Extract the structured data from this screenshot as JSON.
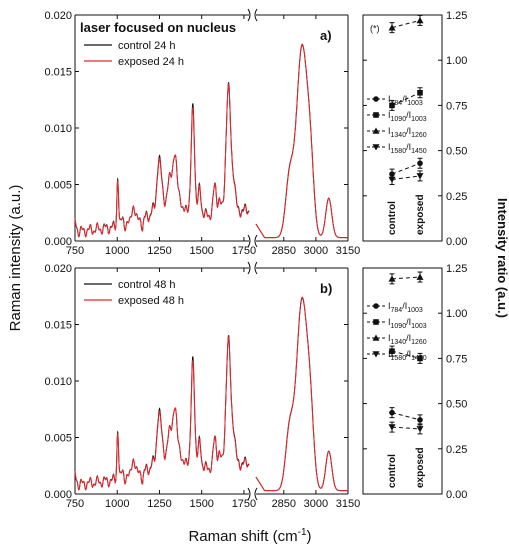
{
  "colors": {
    "control": "#111111",
    "exposed": "#e8262b"
  },
  "common": {
    "xlabel": "Raman shift (cm",
    "xlabel_sup": "-1",
    "xlabel_end": ")",
    "ylabel": "Raman intensity (a.u.)",
    "ylabel_right": "Intensity ratio (a.u.)"
  },
  "chart_data": [
    {
      "type": "line",
      "panel": "a)",
      "title": "laser focused on nucleus",
      "xlim_left": [
        750,
        1780
      ],
      "xlim_right": [
        2720,
        3150
      ],
      "axis_break": true,
      "x_ticks_left": [
        "750",
        "1000",
        "1250",
        "1500",
        "1750"
      ],
      "x_ticks_right": [
        "2850",
        "3000",
        "3150"
      ],
      "ylim": [
        0,
        0.02
      ],
      "y_ticks": [
        "0.000",
        "0.005",
        "0.010",
        "0.015",
        "0.020"
      ],
      "legend": "upper-left",
      "series": [
        {
          "name": "control 24 h",
          "color": "#111111"
        },
        {
          "name": "exposed 24 h",
          "color": "#e8262b"
        }
      ]
    },
    {
      "type": "line",
      "panel": "b)",
      "title": "",
      "xlim_left": [
        750,
        1780
      ],
      "xlim_right": [
        2720,
        3150
      ],
      "axis_break": true,
      "x_ticks_left": [
        "750",
        "1000",
        "1250",
        "1500",
        "1750"
      ],
      "x_ticks_right": [
        "2850",
        "3000",
        "3150"
      ],
      "ylim": [
        0,
        0.02
      ],
      "y_ticks": [
        "0.000",
        "0.005",
        "0.010",
        "0.015",
        "0.020"
      ],
      "legend": "upper-left",
      "series": [
        {
          "name": "control 48 h",
          "color": "#111111"
        },
        {
          "name": "exposed 48 h",
          "color": "#e8262b"
        }
      ]
    },
    {
      "type": "scatter",
      "panel": "a-ratio",
      "categories": [
        "control",
        "exposed"
      ],
      "ylim": [
        0,
        1.25
      ],
      "y_ticks": [
        "0.00",
        "0.25",
        "0.50",
        "0.75",
        "1.00",
        "1.25"
      ],
      "annotation": "(*)",
      "series": [
        {
          "name_main": "I",
          "sub1": "784",
          "sep": "/I",
          "sub2": "1003",
          "marker": "circle",
          "values": [
            0.37,
            0.43
          ]
        },
        {
          "name_main": "I",
          "sub1": "1090",
          "sep": "/I",
          "sub2": "1003",
          "marker": "square",
          "values": [
            0.75,
            0.82
          ]
        },
        {
          "name_main": "I",
          "sub1": "1340",
          "sep": "/I",
          "sub2": "1260",
          "marker": "triangle-up",
          "values": [
            1.18,
            1.22
          ]
        },
        {
          "name_main": "I",
          "sub1": "1580",
          "sep": "/I",
          "sub2": "1450",
          "marker": "triangle-down",
          "values": [
            0.34,
            0.36
          ]
        }
      ]
    },
    {
      "type": "scatter",
      "panel": "b-ratio",
      "categories": [
        "control",
        "exposed"
      ],
      "ylim": [
        0,
        1.25
      ],
      "y_ticks": [
        "0.00",
        "0.25",
        "0.50",
        "0.75",
        "1.00",
        "1.25"
      ],
      "series": [
        {
          "name_main": "I",
          "sub1": "784",
          "sep": "/I",
          "sub2": "1003",
          "marker": "circle",
          "values": [
            0.45,
            0.41
          ]
        },
        {
          "name_main": "I",
          "sub1": "1090",
          "sep": "/I",
          "sub2": "1003",
          "marker": "square",
          "values": [
            0.79,
            0.75
          ]
        },
        {
          "name_main": "I",
          "sub1": "1340",
          "sep": "/I",
          "sub2": "1260",
          "marker": "triangle-up",
          "values": [
            1.19,
            1.2
          ]
        },
        {
          "name_main": "I",
          "sub1": "1580",
          "sep": "/I",
          "sub2": "1450",
          "marker": "triangle-down",
          "values": [
            0.37,
            0.36
          ]
        }
      ]
    }
  ]
}
